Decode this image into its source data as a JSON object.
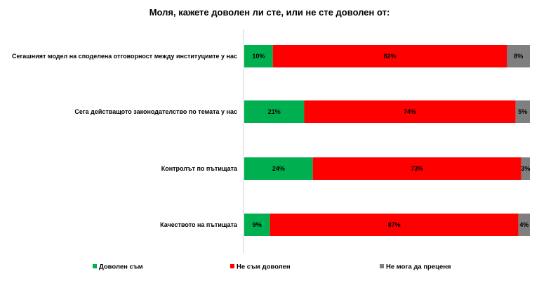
{
  "chart_data": {
    "type": "bar",
    "orientation": "horizontal",
    "stacked": true,
    "title": "Моля, кажете доволен ли сте, или не сте доволен от:",
    "categories": [
      "Сегашният модел на споделена отговорност между институциите у нас",
      "Сега действащото законодателство по темата у нас",
      "Контролът по пътищата",
      "Качеството на пътищата"
    ],
    "series": [
      {
        "name": "Доволен съм",
        "values": [
          10,
          21,
          24,
          9
        ],
        "labels": [
          "10%",
          "21%",
          "24%",
          "9%"
        ],
        "color": "#00b050"
      },
      {
        "name": "Не съм доволен",
        "values": [
          82,
          74,
          73,
          87
        ],
        "labels": [
          "82%",
          "74%",
          "73%",
          "87%"
        ],
        "color": "#ff0000"
      },
      {
        "name": "Не мога да преценя",
        "values": [
          8,
          5,
          3,
          4
        ],
        "labels": [
          "8%",
          "5%",
          "3%",
          "4%"
        ],
        "color": "#7f7f7f"
      }
    ],
    "xlim": [
      0,
      100
    ],
    "grid": false,
    "legend": "bottom"
  }
}
